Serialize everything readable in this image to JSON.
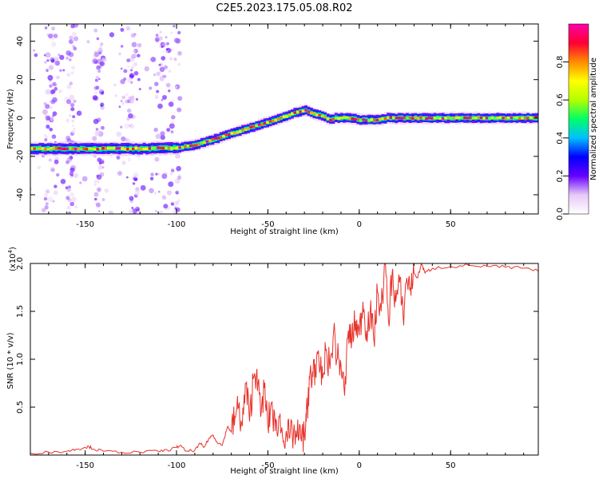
{
  "page": {
    "title": "C2E5.2023.175.05.08.R02"
  },
  "chart_data": [
    {
      "type": "heatmap",
      "xlabel": "Height of straight line (km)",
      "ylabel": "Frequency (Hz)",
      "xlim": [
        -180,
        98
      ],
      "ylim": [
        -50,
        49
      ],
      "xticks": [
        -150,
        -100,
        -50,
        0,
        50
      ],
      "yticks": [
        -40,
        -20,
        0,
        20,
        40
      ],
      "ytick_labels": [
        "-40",
        "-20",
        "0",
        "20",
        "40"
      ],
      "colorbar": {
        "label": "Normalized spectral amplitude",
        "range": [
          0.0,
          1.0
        ],
        "ticks": [
          0.0,
          0.2,
          0.4,
          0.6,
          0.8
        ],
        "tick_labels": [
          "0.0",
          "0.2",
          "0.4",
          "0.6",
          "0.8"
        ],
        "colormap": [
          "#ffffff",
          "#e7c9f7",
          "#6600ff",
          "#0000ff",
          "#00c0ff",
          "#00ff66",
          "#b4ff00",
          "#ffff00",
          "#ff8c00",
          "#ff0033",
          "#ff00aa"
        ]
      },
      "ridge": {
        "x": [
          -180,
          -150,
          -120,
          -100,
          -90,
          -80,
          -70,
          -60,
          -50,
          -40,
          -35,
          -30,
          -25,
          -20,
          -17,
          -14,
          -10,
          -5,
          0,
          5,
          10,
          15,
          20,
          30,
          50,
          70,
          98
        ],
        "y": [
          -16,
          -16,
          -16,
          -15.5,
          -14,
          -11,
          -8,
          -5,
          -2,
          1,
          3,
          4,
          2,
          1,
          -1,
          0,
          0,
          0,
          -1,
          -1,
          -1,
          0,
          0,
          0,
          0,
          0,
          0
        ]
      },
      "grid": false
    },
    {
      "type": "line",
      "xlabel": "Height of straight line (km)",
      "ylabel": "SNR (10 * v/v)",
      "scale_label": "(x10",
      "scale_exp": "4",
      "scale_close": ")",
      "xlim": [
        -180,
        98
      ],
      "ylim": [
        0,
        2.0
      ],
      "xticks": [
        -150,
        -100,
        -50,
        0,
        50
      ],
      "yticks": [
        0.5,
        1.0,
        1.5,
        2.0
      ],
      "ytick_labels": [
        "0.5",
        "1.0",
        "1.5",
        "2.0"
      ],
      "series": [
        {
          "color": "#e8312a",
          "x": [
            -180,
            -170,
            -160,
            -155,
            -150,
            -148,
            -145,
            -140,
            -130,
            -120,
            -110,
            -105,
            -100,
            -98,
            -95,
            -90,
            -87,
            -85,
            -82,
            -80,
            -78,
            -75,
            -72,
            -70,
            -68,
            -66,
            -64,
            -62,
            -60,
            -58,
            -56,
            -54,
            -52,
            -50,
            -48,
            -46,
            -44,
            -42,
            -40,
            -38,
            -36,
            -34,
            -32,
            -30,
            -29,
            -28,
            -27,
            -26,
            -25,
            -24,
            -22,
            -20,
            -18,
            -16,
            -14,
            -12,
            -10,
            -8,
            -6,
            -4,
            -2,
            0,
            2,
            4,
            6,
            8,
            10,
            12,
            14,
            16,
            18,
            20,
            22,
            24,
            26,
            28,
            30,
            32,
            34,
            36,
            40,
            50,
            60,
            70,
            80,
            90,
            98
          ],
          "y": [
            0.02,
            0.03,
            0.04,
            0.06,
            0.08,
            0.09,
            0.06,
            0.04,
            0.03,
            0.03,
            0.04,
            0.05,
            0.08,
            0.1,
            0.04,
            0.05,
            0.12,
            0.08,
            0.18,
            0.21,
            0.14,
            0.1,
            0.3,
            0.24,
            0.4,
            0.5,
            0.3,
            0.75,
            0.35,
            0.8,
            0.9,
            0.4,
            0.7,
            0.3,
            0.55,
            0.25,
            0.4,
            0.2,
            0.25,
            0.18,
            0.22,
            0.2,
            0.18,
            0.2,
            0.35,
            0.6,
            0.85,
            0.7,
            1.0,
            0.85,
            0.95,
            0.8,
            1.1,
            0.9,
            1.3,
            1.0,
            0.95,
            0.62,
            1.3,
            1.2,
            1.4,
            1.25,
            1.6,
            1.3,
            1.5,
            1.2,
            1.7,
            1.5,
            2.0,
            1.4,
            1.9,
            1.6,
            1.8,
            1.45,
            1.85,
            1.75,
            1.9,
            1.85,
            2.0,
            1.9,
            1.95,
            1.97,
            1.98,
            1.97,
            1.96,
            1.95,
            1.92
          ]
        }
      ],
      "grid": false
    }
  ]
}
